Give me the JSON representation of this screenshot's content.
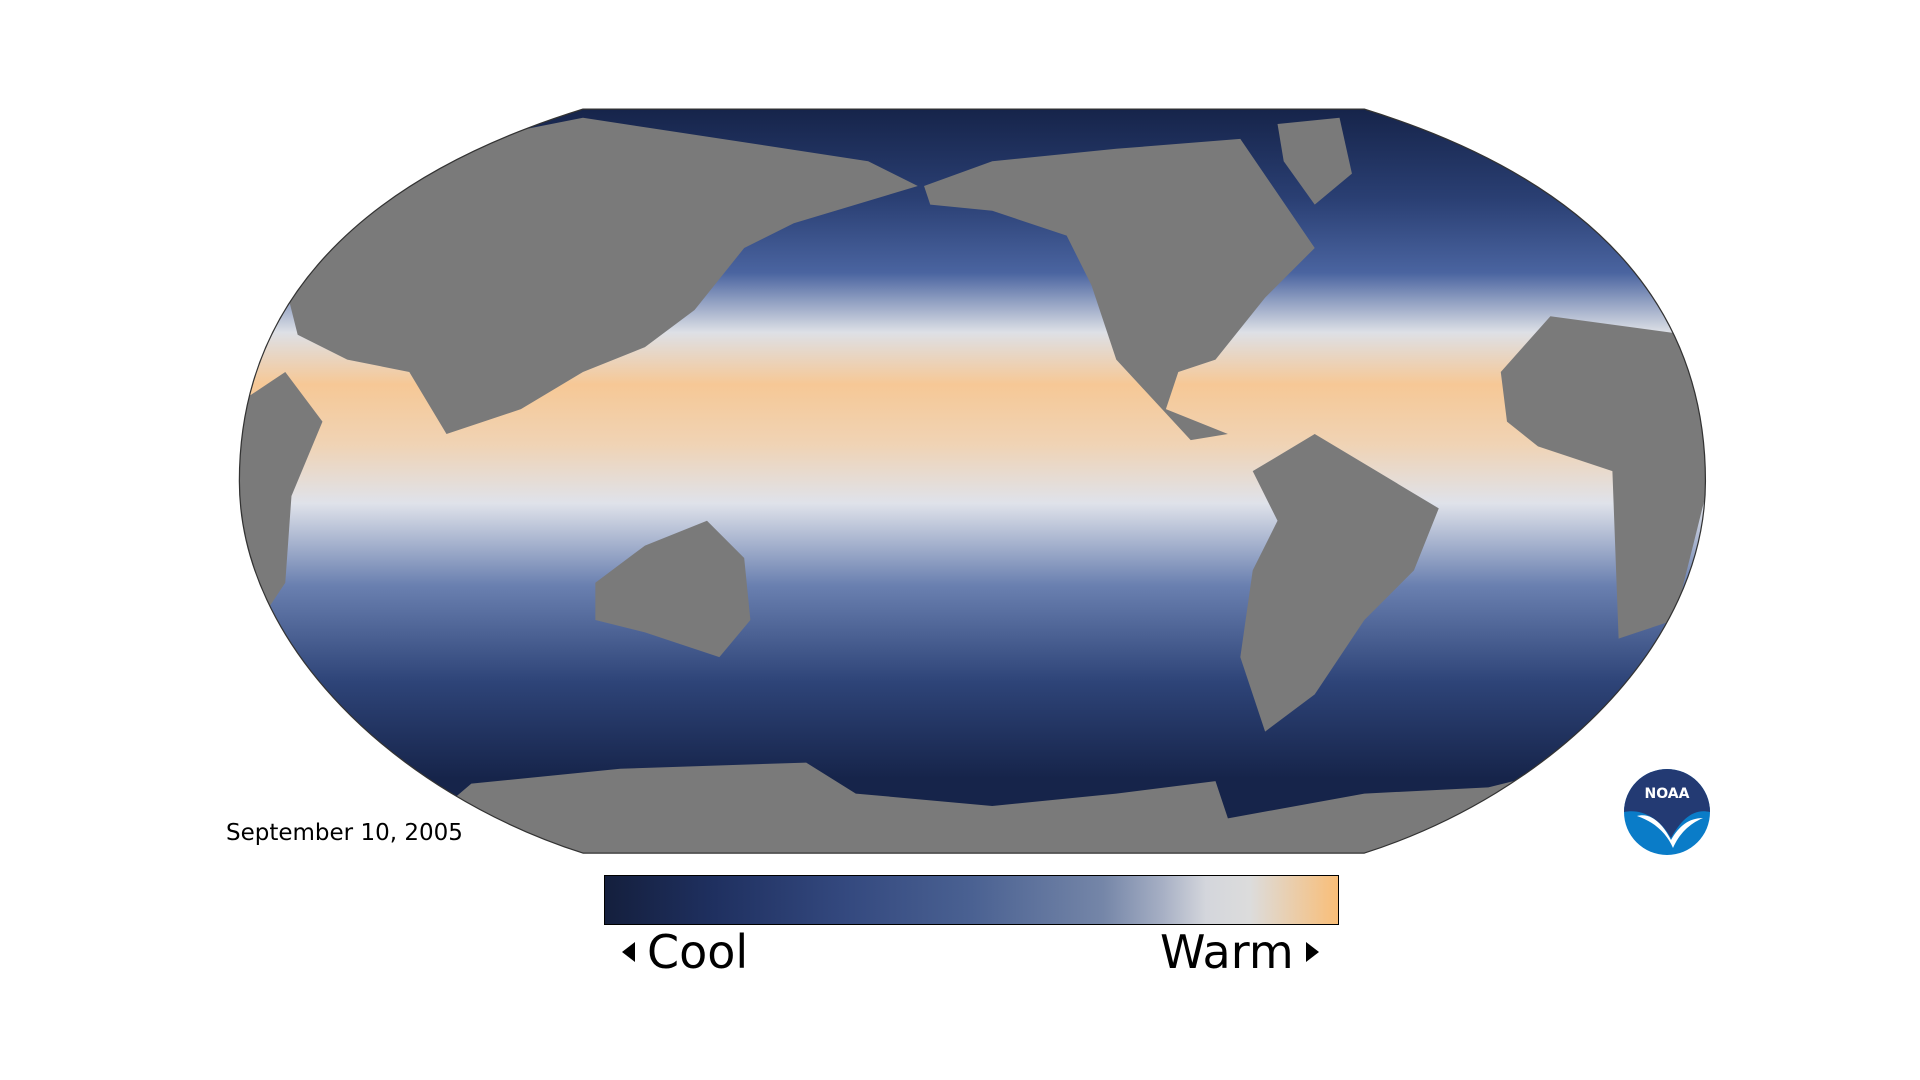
{
  "map": {
    "date": "September 10, 2005",
    "land_color": "#7a7a7a",
    "ocean_colors": {
      "cold": "#16244a",
      "cool": "#3a5590",
      "neutral": "#dde0e6",
      "warm": "#f6c896"
    }
  },
  "legend": {
    "cool_label": "Cool",
    "warm_label": "Warm",
    "cool_arrow_icon": "triangle-left-icon",
    "warm_arrow_icon": "triangle-right-icon"
  },
  "logo": {
    "text": "NOAA",
    "colors": {
      "top": "#233a73",
      "bottom": "#0a7cc8"
    }
  }
}
